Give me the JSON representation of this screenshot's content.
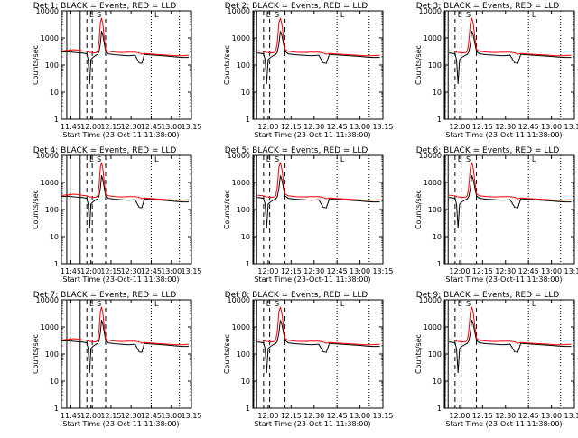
{
  "chart_data": [
    {
      "type": "line",
      "title": "Det 1: BLACK = Events, RED = LLD",
      "xlabel": "Start Time (23-Oct-11 11:38:00)",
      "ylabel": "Counts/sec",
      "xticks": [
        "11:45",
        "12:00",
        "12:15",
        "12:30",
        "12:45",
        "13:00",
        "13:15"
      ],
      "yticks": [
        "1",
        "10",
        "100",
        "1000",
        "10000"
      ],
      "yscale": "log",
      "ylim": [
        1,
        10000
      ]
    },
    {
      "type": "line",
      "title": "Det 2: BLACK = Events, RED = LLD",
      "xlabel": "Start Time (23-Oct-11 11:38:00)",
      "ylabel": "Counts/sec",
      "xticks": [
        "12:00",
        "12:15",
        "12:30",
        "12:45",
        "13:00",
        "13:15"
      ],
      "yticks": [
        "1",
        "10",
        "100",
        "1000",
        "10000"
      ],
      "yscale": "log",
      "ylim": [
        1,
        10000
      ]
    },
    {
      "type": "line",
      "title": "Det 3: BLACK = Events, RED = LLD",
      "xlabel": "Start Time (23-Oct-11 11:38:00)",
      "ylabel": "Counts/sec",
      "xticks": [
        "12:00",
        "12:15",
        "12:30",
        "12:45",
        "13:00",
        "13:15"
      ],
      "yticks": [
        "1",
        "10",
        "100",
        "1000",
        "10000"
      ],
      "yscale": "log",
      "ylim": [
        1,
        10000
      ]
    },
    {
      "type": "line",
      "title": "Det 4: BLACK = Events, RED = LLD",
      "xlabel": "Start Time (23-Oct-11 11:38:00)",
      "ylabel": "Counts/sec",
      "xticks": [
        "11:45",
        "12:00",
        "12:15",
        "12:30",
        "12:45",
        "13:00",
        "13:15"
      ],
      "yticks": [
        "1",
        "10",
        "100",
        "1000",
        "10000"
      ],
      "yscale": "log",
      "ylim": [
        1,
        10000
      ]
    },
    {
      "type": "line",
      "title": "Det 5: BLACK = Events, RED = LLD",
      "xlabel": "Start Time (23-Oct-11 11:38:00)",
      "ylabel": "Counts/sec",
      "xticks": [
        "12:00",
        "12:15",
        "12:30",
        "12:45",
        "13:00",
        "13:15"
      ],
      "yticks": [
        "1",
        "10",
        "100",
        "1000",
        "10000"
      ],
      "yscale": "log",
      "ylim": [
        1,
        10000
      ]
    },
    {
      "type": "line",
      "title": "Det 6: BLACK = Events, RED = LLD",
      "xlabel": "Start Time (23-Oct-11 11:38:00)",
      "ylabel": "Counts/sec",
      "xticks": [
        "12:00",
        "12:15",
        "12:30",
        "12:45",
        "13:00",
        "13:15"
      ],
      "yticks": [
        "1",
        "10",
        "100",
        "1000",
        "10000"
      ],
      "yscale": "log",
      "ylim": [
        1,
        10000
      ]
    },
    {
      "type": "line",
      "title": "Det 7: BLACK = Events, RED = LLD",
      "xlabel": "Start Time (23-Oct-11 11:38:00)",
      "ylabel": "Counts/sec",
      "xticks": [
        "11:45",
        "12:00",
        "12:15",
        "12:30",
        "12:45",
        "13:00",
        "13:15"
      ],
      "yticks": [
        "1",
        "10",
        "100",
        "1000",
        "10000"
      ],
      "yscale": "log",
      "ylim": [
        1,
        10000
      ]
    },
    {
      "type": "line",
      "title": "Det 8: BLACK = Events, RED = LLD",
      "xlabel": "Start Time (23-Oct-11 11:38:00)",
      "ylabel": "Counts/sec",
      "xticks": [
        "12:00",
        "12:15",
        "12:30",
        "12:45",
        "13:00",
        "13:15"
      ],
      "yticks": [
        "1",
        "10",
        "100",
        "1000",
        "10000"
      ],
      "yscale": "log",
      "ylim": [
        1,
        10000
      ]
    },
    {
      "type": "line",
      "title": "Det 9: BLACK = Events, RED = LLD",
      "xlabel": "Start Time (23-Oct-11 11:38:00)",
      "ylabel": "Counts/sec",
      "xticks": [
        "12:00",
        "12:15",
        "12:30",
        "12:45",
        "13:00",
        "13:15"
      ],
      "yticks": [
        "1",
        "10",
        "100",
        "1000",
        "10000"
      ],
      "yscale": "log",
      "ylim": [
        1,
        10000
      ]
    }
  ],
  "shared_series": {
    "x_minutes": [
      0,
      5,
      10,
      15,
      19,
      20,
      21,
      22,
      24,
      26,
      27,
      28,
      29,
      30,
      31,
      32,
      33,
      35,
      40,
      45,
      50,
      55,
      58,
      60,
      62,
      65,
      70,
      75,
      80,
      85,
      90,
      95
    ],
    "x_labels_meaning": "minutes after 11:38:00",
    "events_black": [
      300,
      310,
      290,
      280,
      260,
      150,
      20,
      160,
      200,
      230,
      250,
      300,
      600,
      1800,
      1200,
      600,
      320,
      260,
      240,
      230,
      220,
      230,
      120,
      115,
      250,
      240,
      230,
      220,
      210,
      200,
      190,
      190
    ],
    "lld_red": [
      330,
      350,
      370,
      340,
      320,
      300,
      290,
      290,
      280,
      290,
      320,
      700,
      3500,
      5500,
      3000,
      1000,
      380,
      320,
      300,
      290,
      300,
      300,
      280,
      250,
      270,
      260,
      250,
      240,
      230,
      220,
      220,
      230
    ],
    "marker_letters": [
      "L",
      "S",
      "L"
    ],
    "colors": {
      "events": "#000000",
      "lld": "#ff0000"
    }
  }
}
